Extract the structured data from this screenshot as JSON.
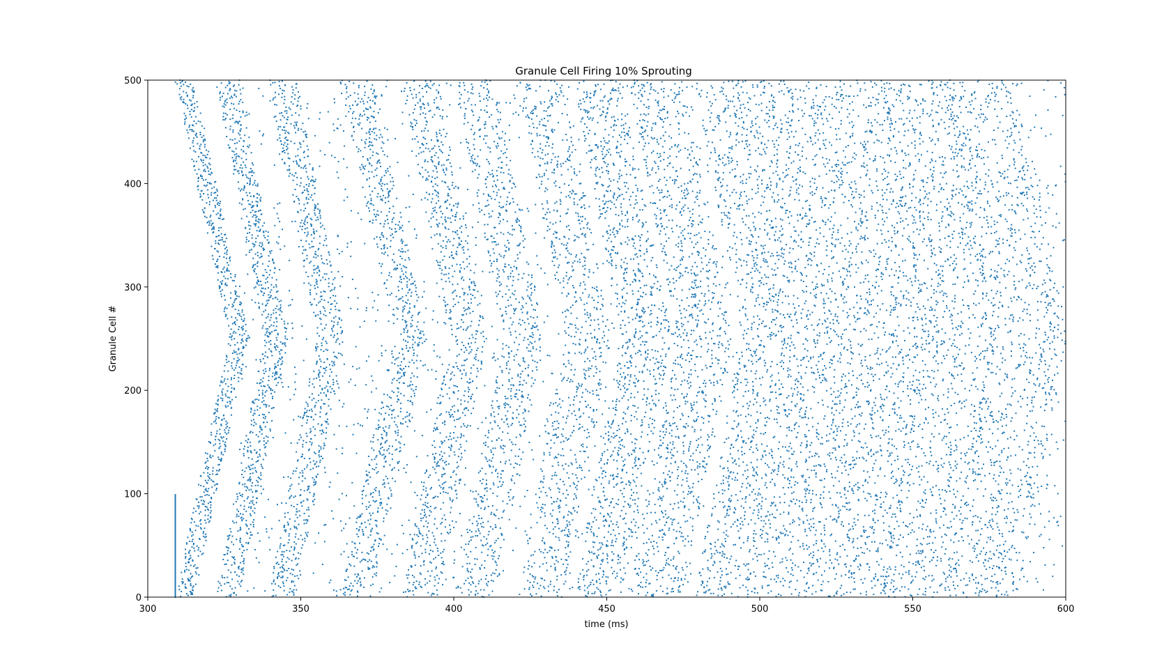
{
  "chart_data": {
    "type": "scatter",
    "title": "Granule Cell Firing 10% Sprouting",
    "xlabel": "time (ms)",
    "ylabel": "Granule Cell #",
    "xlim": [
      300,
      600
    ],
    "ylim": [
      0,
      500
    ],
    "xticks": [
      "300",
      "350",
      "400",
      "450",
      "500",
      "550",
      "600"
    ],
    "yticks": [
      "0",
      "100",
      "200",
      "300",
      "400",
      "500"
    ],
    "grid": false,
    "marker_color": "#1f77b4",
    "series": [
      {
        "description_of_pattern": "",
        "stimulus": {
          "x": 309,
          "y_range": [
            0,
            99
          ]
        },
        "wave_fronts": [
          {
            "x_center": 330,
            "x_edge": 312,
            "note": ""
          },
          {
            "x_center": 342,
            "x_edge": 326
          },
          {
            "x_center": 360,
            "x_edge": 344
          },
          {
            "x_center": 386,
            "x_edge": 368
          },
          {
            "x_center": 405,
            "x_edge": 389
          },
          {
            "x_center": 423,
            "x_edge": 407
          },
          {
            "x_center": 444,
            "x_edge": 428
          },
          {
            "x_center": 463,
            "x_edge": 447
          },
          {
            "x_center": 482,
            "x_edge": 466
          },
          {
            "x_center": 504,
            "x_edge": 488
          },
          {
            "x_center": 524,
            "x_edge": 508
          },
          {
            "x_center": 545,
            "x_edge": 530
          },
          {
            "x_center": 566,
            "x_edge": 551
          },
          {
            "x_center": 588,
            "x_edge": 572
          }
        ]
      }
    ]
  }
}
